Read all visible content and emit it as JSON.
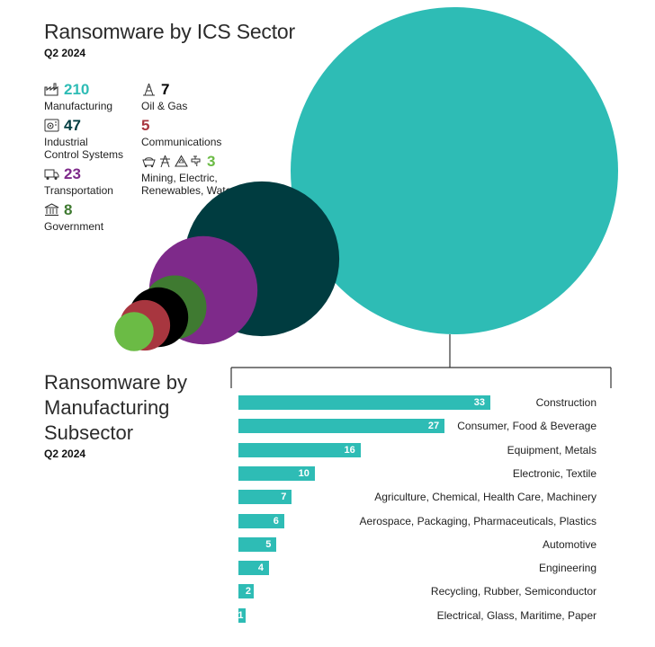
{
  "top": {
    "title": "Ransomware by ICS Sector",
    "period": "Q2 2024"
  },
  "sectors": [
    {
      "value": "210",
      "label": "Manufacturing",
      "color": "#2ebcb5",
      "icons": [
        "factory-icon"
      ]
    },
    {
      "value": "47",
      "label": "Industrial\nControl Systems",
      "color": "#003c40",
      "icons": [
        "control-gear-icon"
      ]
    },
    {
      "value": "23",
      "label": "Transportation",
      "color": "#7e2a8a",
      "icons": [
        "truck-icon"
      ]
    },
    {
      "value": "8",
      "label": "Government",
      "color": "#3f7a31",
      "icons": [
        "government-building-icon"
      ]
    },
    {
      "value": "7",
      "label": "Oil & Gas",
      "color": "#000000",
      "icons": [
        "oil-rig-icon"
      ]
    },
    {
      "value": "5",
      "label": "Communications",
      "color": "#a8363f",
      "icons": []
    },
    {
      "value": "3",
      "label": "Mining, Electric,\nRenewables, Water",
      "color": "#6bbb45",
      "icons": [
        "mining-cart-icon",
        "power-tower-icon",
        "recycle-icon",
        "water-tap-icon"
      ]
    }
  ],
  "bottom": {
    "title": "Ransomware by\nManufacturing\nSubsector",
    "period": "Q2 2024"
  },
  "chart_data": [
    {
      "type": "bubble",
      "title": "Ransomware by ICS Sector",
      "subtitle": "Q2 2024",
      "categories": [
        "Manufacturing",
        "Industrial Control Systems",
        "Transportation",
        "Government",
        "Oil & Gas",
        "Communications",
        "Mining, Electric, Renewables, Water"
      ],
      "values": [
        210,
        47,
        23,
        8,
        7,
        5,
        3
      ]
    },
    {
      "type": "bar",
      "orientation": "horizontal",
      "title": "Ransomware by Manufacturing Subsector",
      "subtitle": "Q2 2024",
      "categories": [
        "Construction",
        "Consumer, Food & Beverage",
        "Equipment, Metals",
        "Electronic, Textile",
        "Agriculture, Chemical, Health Care, Machinery",
        "Aerospace, Packaging, Pharmaceuticals, Plastics",
        "Automotive",
        "Engineering",
        "Recycling, Rubber, Semiconductor",
        "Electrical, Glass, Maritime, Paper"
      ],
      "values": [
        33,
        27,
        16,
        10,
        7,
        6,
        5,
        4,
        2,
        1
      ],
      "labels": [
        "33",
        "27",
        "16",
        "10",
        "7",
        "6",
        "5",
        "4",
        "2",
        "1"
      ],
      "bar_color": "#2ebcb5"
    }
  ]
}
